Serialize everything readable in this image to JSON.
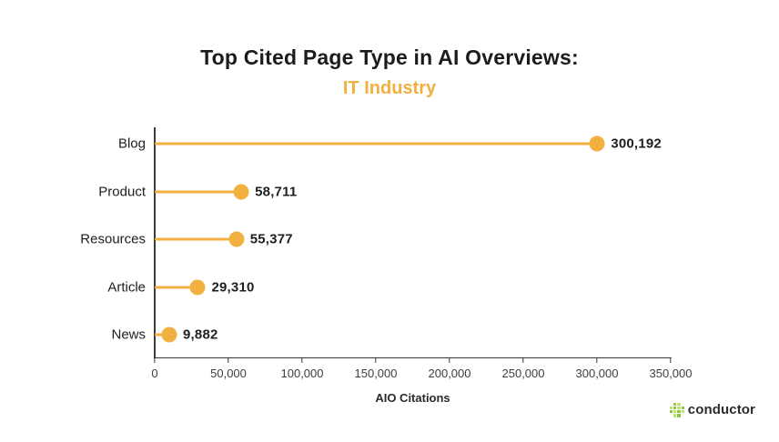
{
  "chart": {
    "title": "Top Cited Page Type in AI Overviews:",
    "subtitle": "IT Industry",
    "xlabel": "AIO Citations"
  },
  "chart_data": {
    "type": "bar",
    "style": "lollipop",
    "orientation": "horizontal",
    "title": "Top Cited Page Type in AI Overviews:",
    "subtitle": "IT Industry",
    "xlabel": "AIO Citations",
    "categories": [
      "Blog",
      "Product",
      "Resources",
      "Article",
      "News"
    ],
    "values": [
      300192,
      58711,
      55377,
      29310,
      9882
    ],
    "value_labels": [
      "300,192",
      "58,711",
      "55,377",
      "29,310",
      "9,882"
    ],
    "xlim": [
      0,
      350000
    ],
    "xticks": [
      0,
      50000,
      100000,
      150000,
      200000,
      250000,
      300000,
      350000
    ],
    "xtick_labels": [
      "0",
      "50,000",
      "100,000",
      "150,000",
      "200,000",
      "250,000",
      "300,000",
      "350,000"
    ],
    "grid": false,
    "legend": "none",
    "accent_color": "#F2B040"
  },
  "footer": {
    "logo_text": "conductor"
  },
  "colors": {
    "accent_orange": "#F2B040",
    "title_text": "#1c1c1e",
    "axis": "#3a3a3a",
    "tick_text": "#3d3d3f",
    "logo_green_dark": "#8CC63E",
    "logo_green_light": "#C2DE7C"
  }
}
